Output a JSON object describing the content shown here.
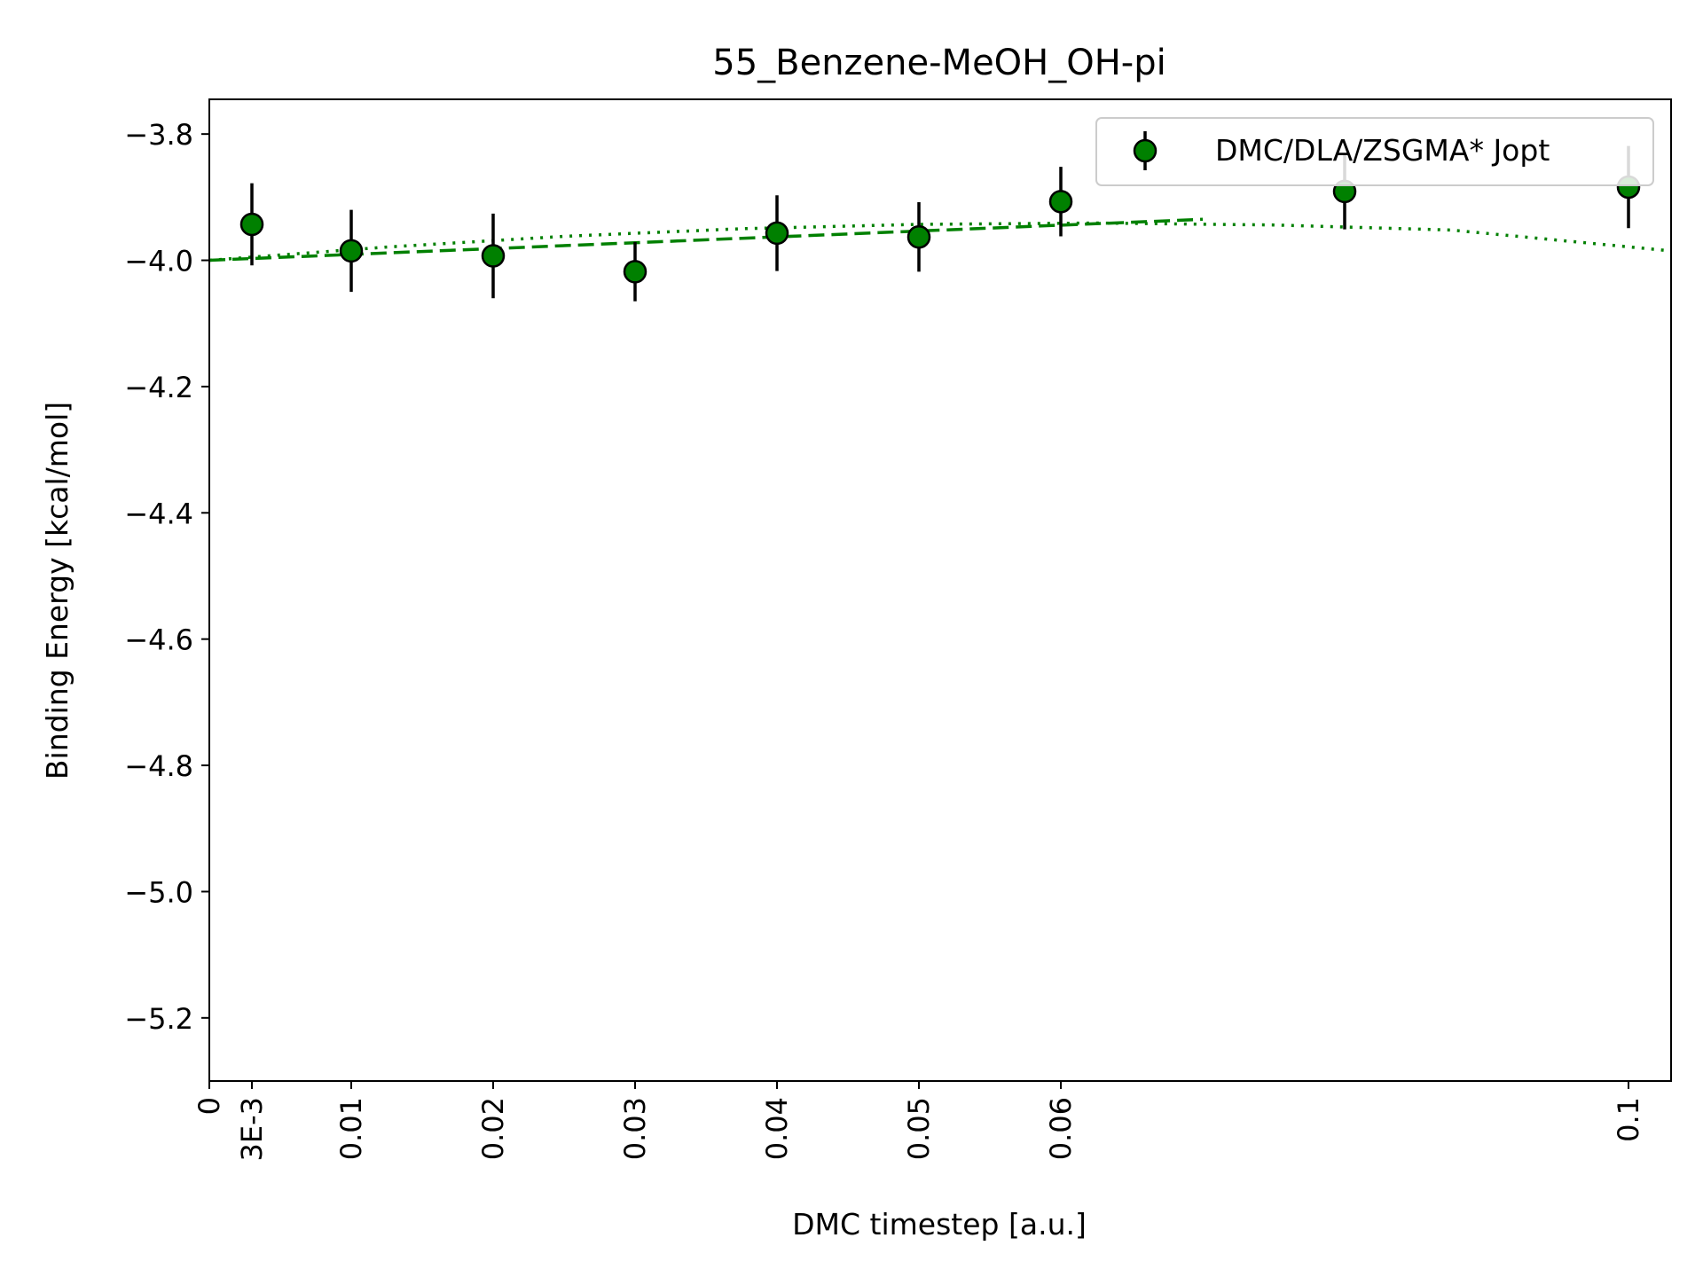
{
  "chart_data": {
    "type": "scatter",
    "title": "55_Benzene-MeOH_OH-pi",
    "xlabel": "DMC timestep [a.u.]",
    "ylabel": "Binding Energy [kcal/mol]",
    "xlim": [
      0,
      0.103
    ],
    "ylim": [
      -5.3,
      -3.745
    ],
    "x_ticks": [
      0,
      0.003,
      0.01,
      0.02,
      0.03,
      0.04,
      0.05,
      0.06,
      0.1
    ],
    "x_tick_labels": [
      "0",
      "3E-3",
      "0.01",
      "0.02",
      "0.03",
      "0.04",
      "0.05",
      "0.06",
      "0.1"
    ],
    "y_ticks": [
      -3.8,
      -4.0,
      -4.2,
      -4.4,
      -4.6,
      -4.8,
      -5.0,
      -5.2
    ],
    "y_tick_labels": [
      "−3.8",
      "−4.0",
      "−4.2",
      "−4.4",
      "−4.6",
      "−4.8",
      "−5.0",
      "−5.2"
    ],
    "grid": false,
    "legend_position": "top-right",
    "series": [
      {
        "name": "DMC/DLA/ZSGMA* Jopt",
        "color": "#008000",
        "x": [
          0.003,
          0.01,
          0.02,
          0.03,
          0.04,
          0.05,
          0.06,
          0.08,
          0.1
        ],
        "y": [
          -3.943,
          -3.985,
          -3.993,
          -4.018,
          -3.957,
          -3.963,
          -3.907,
          -3.891,
          -3.884
        ],
        "yerr": [
          0.065,
          0.065,
          0.067,
          0.047,
          0.06,
          0.055,
          0.055,
          0.06,
          0.065
        ]
      }
    ],
    "fit_lines": [
      {
        "style": "dotted",
        "color": "#008000",
        "x": [
          0,
          0.0125,
          0.025,
          0.0375,
          0.05,
          0.0625,
          0.075,
          0.0875,
          0.103
        ],
        "y": [
          -4.0,
          -3.979,
          -3.962,
          -3.95,
          -3.943,
          -3.941,
          -3.944,
          -3.952,
          -3.985
        ]
      },
      {
        "style": "dashed",
        "color": "#008000",
        "x": [
          0,
          0.07
        ],
        "y": [
          -4.0,
          -3.935
        ]
      }
    ]
  }
}
